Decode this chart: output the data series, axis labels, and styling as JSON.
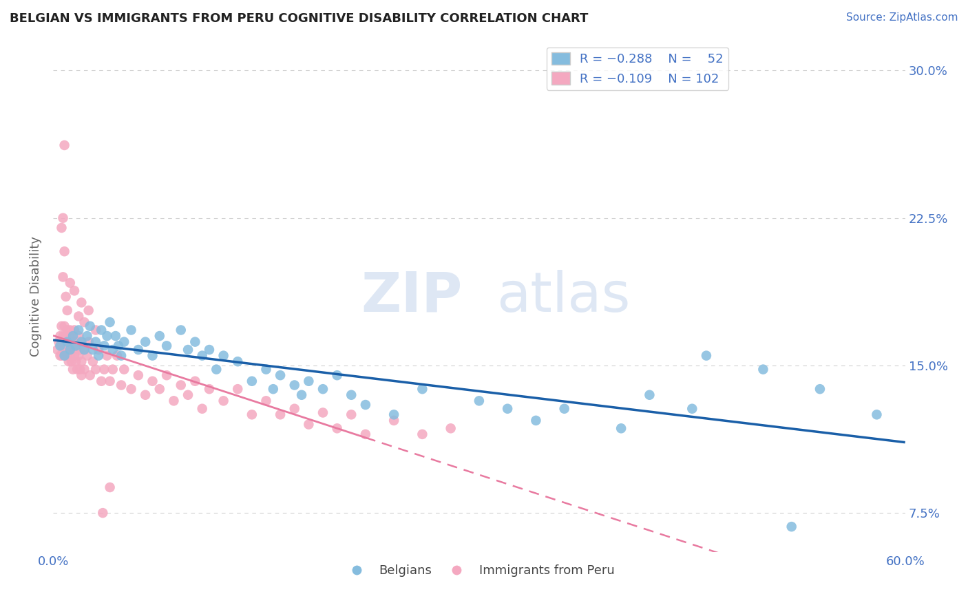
{
  "title": "BELGIAN VS IMMIGRANTS FROM PERU COGNITIVE DISABILITY CORRELATION CHART",
  "source_text": "Source: ZipAtlas.com",
  "ylabel": "Cognitive Disability",
  "xmin": 0.0,
  "xmax": 0.6,
  "ymin": 0.055,
  "ymax": 0.315,
  "yticks": [
    0.075,
    0.15,
    0.225,
    0.3
  ],
  "ytick_labels": [
    "7.5%",
    "15.0%",
    "22.5%",
    "30.0%"
  ],
  "xticks": [
    0.0,
    0.6
  ],
  "xtick_labels": [
    "0.0%",
    "60.0%"
  ],
  "legend_label1": "Belgians",
  "legend_label2": "Immigrants from Peru",
  "blue_color": "#85bcde",
  "pink_color": "#f4a8c0",
  "blue_line_color": "#1a5fa8",
  "pink_line_color": "#e87aa0",
  "blue_scatter": [
    [
      0.005,
      0.16
    ],
    [
      0.008,
      0.155
    ],
    [
      0.01,
      0.162
    ],
    [
      0.012,
      0.158
    ],
    [
      0.014,
      0.165
    ],
    [
      0.016,
      0.16
    ],
    [
      0.018,
      0.168
    ],
    [
      0.02,
      0.162
    ],
    [
      0.022,
      0.158
    ],
    [
      0.024,
      0.165
    ],
    [
      0.026,
      0.17
    ],
    [
      0.028,
      0.158
    ],
    [
      0.03,
      0.162
    ],
    [
      0.032,
      0.155
    ],
    [
      0.034,
      0.168
    ],
    [
      0.036,
      0.16
    ],
    [
      0.038,
      0.165
    ],
    [
      0.04,
      0.172
    ],
    [
      0.042,
      0.158
    ],
    [
      0.044,
      0.165
    ],
    [
      0.046,
      0.16
    ],
    [
      0.048,
      0.155
    ],
    [
      0.05,
      0.162
    ],
    [
      0.055,
      0.168
    ],
    [
      0.06,
      0.158
    ],
    [
      0.065,
      0.162
    ],
    [
      0.07,
      0.155
    ],
    [
      0.075,
      0.165
    ],
    [
      0.08,
      0.16
    ],
    [
      0.09,
      0.168
    ],
    [
      0.095,
      0.158
    ],
    [
      0.1,
      0.162
    ],
    [
      0.105,
      0.155
    ],
    [
      0.11,
      0.158
    ],
    [
      0.115,
      0.148
    ],
    [
      0.12,
      0.155
    ],
    [
      0.13,
      0.152
    ],
    [
      0.14,
      0.142
    ],
    [
      0.15,
      0.148
    ],
    [
      0.155,
      0.138
    ],
    [
      0.16,
      0.145
    ],
    [
      0.17,
      0.14
    ],
    [
      0.175,
      0.135
    ],
    [
      0.18,
      0.142
    ],
    [
      0.19,
      0.138
    ],
    [
      0.2,
      0.145
    ],
    [
      0.21,
      0.135
    ],
    [
      0.22,
      0.13
    ],
    [
      0.24,
      0.125
    ],
    [
      0.26,
      0.138
    ],
    [
      0.3,
      0.132
    ],
    [
      0.32,
      0.128
    ],
    [
      0.34,
      0.122
    ],
    [
      0.36,
      0.128
    ],
    [
      0.4,
      0.118
    ],
    [
      0.42,
      0.135
    ],
    [
      0.45,
      0.128
    ],
    [
      0.46,
      0.155
    ],
    [
      0.5,
      0.148
    ],
    [
      0.52,
      0.068
    ],
    [
      0.54,
      0.138
    ],
    [
      0.58,
      0.125
    ]
  ],
  "pink_scatter": [
    [
      0.003,
      0.158
    ],
    [
      0.004,
      0.162
    ],
    [
      0.005,
      0.155
    ],
    [
      0.005,
      0.165
    ],
    [
      0.006,
      0.16
    ],
    [
      0.006,
      0.155
    ],
    [
      0.006,
      0.17
    ],
    [
      0.007,
      0.162
    ],
    [
      0.007,
      0.158
    ],
    [
      0.007,
      0.165
    ],
    [
      0.008,
      0.155
    ],
    [
      0.008,
      0.162
    ],
    [
      0.008,
      0.17
    ],
    [
      0.009,
      0.158
    ],
    [
      0.009,
      0.165
    ],
    [
      0.009,
      0.155
    ],
    [
      0.01,
      0.16
    ],
    [
      0.01,
      0.168
    ],
    [
      0.01,
      0.155
    ],
    [
      0.01,
      0.162
    ],
    [
      0.011,
      0.158
    ],
    [
      0.011,
      0.165
    ],
    [
      0.011,
      0.152
    ],
    [
      0.012,
      0.16
    ],
    [
      0.012,
      0.155
    ],
    [
      0.012,
      0.168
    ],
    [
      0.013,
      0.158
    ],
    [
      0.013,
      0.162
    ],
    [
      0.013,
      0.152
    ],
    [
      0.014,
      0.165
    ],
    [
      0.014,
      0.158
    ],
    [
      0.014,
      0.148
    ],
    [
      0.015,
      0.162
    ],
    [
      0.015,
      0.155
    ],
    [
      0.015,
      0.168
    ],
    [
      0.016,
      0.158
    ],
    [
      0.016,
      0.152
    ],
    [
      0.017,
      0.162
    ],
    [
      0.017,
      0.148
    ],
    [
      0.018,
      0.155
    ],
    [
      0.018,
      0.165
    ],
    [
      0.019,
      0.158
    ],
    [
      0.019,
      0.148
    ],
    [
      0.02,
      0.162
    ],
    [
      0.02,
      0.152
    ],
    [
      0.02,
      0.145
    ],
    [
      0.022,
      0.158
    ],
    [
      0.022,
      0.148
    ],
    [
      0.024,
      0.155
    ],
    [
      0.025,
      0.162
    ],
    [
      0.026,
      0.145
    ],
    [
      0.028,
      0.152
    ],
    [
      0.03,
      0.148
    ],
    [
      0.032,
      0.158
    ],
    [
      0.034,
      0.142
    ],
    [
      0.036,
      0.148
    ],
    [
      0.038,
      0.155
    ],
    [
      0.04,
      0.142
    ],
    [
      0.042,
      0.148
    ],
    [
      0.045,
      0.155
    ],
    [
      0.048,
      0.14
    ],
    [
      0.05,
      0.148
    ],
    [
      0.055,
      0.138
    ],
    [
      0.06,
      0.145
    ],
    [
      0.065,
      0.135
    ],
    [
      0.07,
      0.142
    ],
    [
      0.075,
      0.138
    ],
    [
      0.08,
      0.145
    ],
    [
      0.085,
      0.132
    ],
    [
      0.09,
      0.14
    ],
    [
      0.095,
      0.135
    ],
    [
      0.1,
      0.142
    ],
    [
      0.105,
      0.128
    ],
    [
      0.11,
      0.138
    ],
    [
      0.12,
      0.132
    ],
    [
      0.13,
      0.138
    ],
    [
      0.14,
      0.125
    ],
    [
      0.15,
      0.132
    ],
    [
      0.16,
      0.125
    ],
    [
      0.17,
      0.128
    ],
    [
      0.18,
      0.12
    ],
    [
      0.19,
      0.126
    ],
    [
      0.2,
      0.118
    ],
    [
      0.21,
      0.125
    ],
    [
      0.22,
      0.115
    ],
    [
      0.24,
      0.122
    ],
    [
      0.26,
      0.115
    ],
    [
      0.28,
      0.118
    ],
    [
      0.006,
      0.22
    ],
    [
      0.007,
      0.225
    ],
    [
      0.007,
      0.195
    ],
    [
      0.008,
      0.208
    ],
    [
      0.008,
      0.262
    ],
    [
      0.009,
      0.185
    ],
    [
      0.01,
      0.178
    ],
    [
      0.012,
      0.192
    ],
    [
      0.015,
      0.188
    ],
    [
      0.018,
      0.175
    ],
    [
      0.02,
      0.182
    ],
    [
      0.022,
      0.172
    ],
    [
      0.025,
      0.178
    ],
    [
      0.03,
      0.168
    ],
    [
      0.035,
      0.075
    ],
    [
      0.04,
      0.088
    ]
  ],
  "watermark_zip": "ZIP",
  "watermark_atlas": "atlas",
  "background_color": "#ffffff",
  "grid_color": "#d0d0d0"
}
